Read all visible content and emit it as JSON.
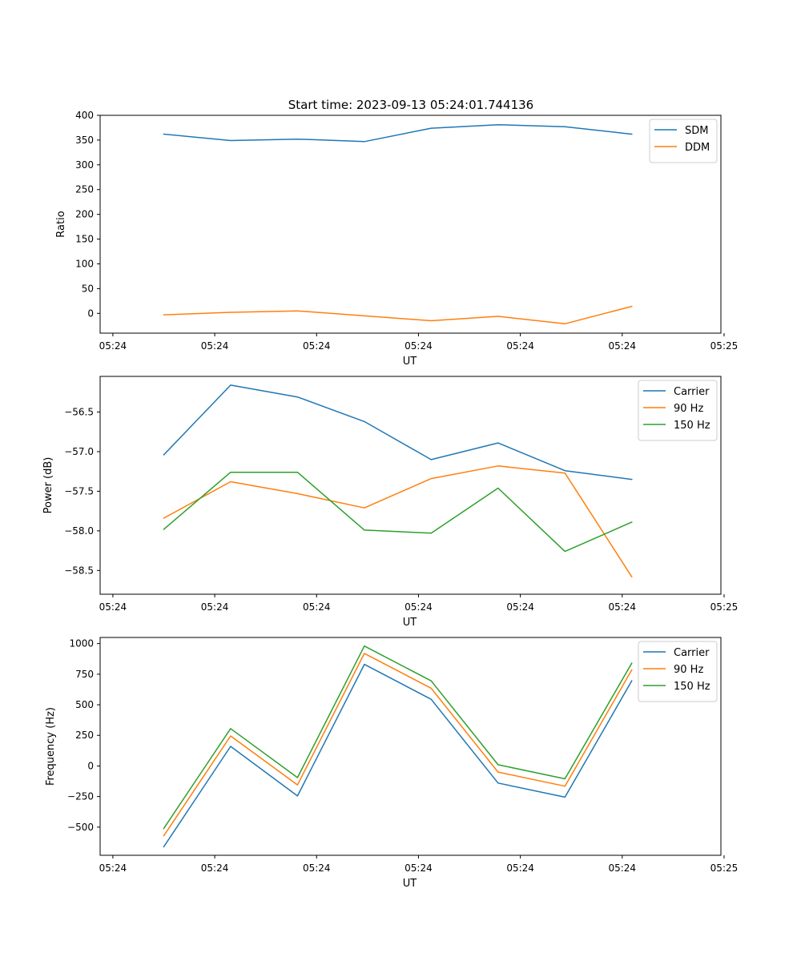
{
  "figure_title": "Start time: 2023-09-13 05:24:01.744136",
  "colors": {
    "blue": "#1f77b4",
    "orange": "#ff7f0e",
    "green": "#2ca02c"
  },
  "chart_data": [
    {
      "type": "line",
      "title": "Start time: 2023-09-13 05:24:01.744136",
      "xlabel": "UT",
      "ylabel": "Ratio",
      "xlim": [
        0,
        9.75
      ],
      "ylim": [
        -40,
        400
      ],
      "x_tick_values": [
        0.2,
        1.8,
        3.4,
        5.0,
        6.6,
        8.2,
        9.8
      ],
      "x_tick_labels": [
        "05:24",
        "05:24",
        "05:24",
        "05:24",
        "05:24",
        "05:24",
        "05:25"
      ],
      "y_tick_values": [
        0,
        50,
        100,
        150,
        200,
        250,
        300,
        350,
        400
      ],
      "y_tick_labels": [
        "0",
        "50",
        "100",
        "150",
        "200",
        "250",
        "300",
        "350",
        "400"
      ],
      "legend_position": "top-right",
      "x": [
        1,
        2.05,
        3.1,
        4.15,
        5.2,
        6.25,
        7.3,
        8.35
      ],
      "series": [
        {
          "name": "SDM",
          "color": "#1f77b4",
          "values": [
            362,
            349,
            352,
            347,
            374,
            381,
            377,
            362
          ]
        },
        {
          "name": "DDM",
          "color": "#ff7f0e",
          "values": [
            -3,
            2,
            5,
            -5,
            -15,
            -6,
            -21,
            14
          ]
        }
      ]
    },
    {
      "type": "line",
      "title": "",
      "xlabel": "UT",
      "ylabel": "Power (dB)",
      "xlim": [
        0,
        9.75
      ],
      "ylim": [
        -58.8,
        -56.05
      ],
      "x_tick_values": [
        0.2,
        1.8,
        3.4,
        5.0,
        6.6,
        8.2,
        9.8
      ],
      "x_tick_labels": [
        "05:24",
        "05:24",
        "05:24",
        "05:24",
        "05:24",
        "05:24",
        "05:25"
      ],
      "y_tick_values": [
        -56.5,
        -57.0,
        -57.5,
        -58.0,
        -58.5
      ],
      "y_tick_labels": [
        "−56.5",
        "−57.0",
        "−57.5",
        "−58.0",
        "−58.5"
      ],
      "legend_position": "top-right",
      "x": [
        1,
        2.05,
        3.1,
        4.15,
        5.2,
        6.25,
        7.3,
        8.35
      ],
      "series": [
        {
          "name": "Carrier",
          "color": "#1f77b4",
          "values": [
            -57.04,
            -56.16,
            -56.31,
            -56.62,
            -57.1,
            -56.89,
            -57.24,
            -57.35
          ]
        },
        {
          "name": "90 Hz",
          "color": "#ff7f0e",
          "values": [
            -57.84,
            -57.38,
            -57.53,
            -57.71,
            -57.34,
            -57.18,
            -57.27,
            -58.58
          ]
        },
        {
          "name": "150 Hz",
          "color": "#2ca02c",
          "values": [
            -57.98,
            -57.26,
            -57.26,
            -57.99,
            -58.03,
            -57.46,
            -58.26,
            -57.89
          ]
        }
      ]
    },
    {
      "type": "line",
      "title": "",
      "xlabel": "UT",
      "ylabel": "Frequency (Hz)",
      "xlim": [
        0,
        9.75
      ],
      "ylim": [
        -730,
        1050
      ],
      "x_tick_values": [
        0.2,
        1.8,
        3.4,
        5.0,
        6.6,
        8.2,
        9.8
      ],
      "x_tick_labels": [
        "05:24",
        "05:24",
        "05:24",
        "05:24",
        "05:24",
        "05:24",
        "05:25"
      ],
      "y_tick_values": [
        -500,
        -250,
        0,
        250,
        500,
        750,
        1000
      ],
      "y_tick_labels": [
        "−500",
        "−250",
        "0",
        "250",
        "500",
        "750",
        "1000"
      ],
      "legend_position": "top-right",
      "x": [
        1,
        2.05,
        3.1,
        4.15,
        5.2,
        6.25,
        7.3,
        8.35
      ],
      "series": [
        {
          "name": "Carrier",
          "color": "#1f77b4",
          "values": [
            -660,
            160,
            -245,
            830,
            545,
            -140,
            -255,
            695
          ]
        },
        {
          "name": "90 Hz",
          "color": "#ff7f0e",
          "values": [
            -570,
            245,
            -155,
            920,
            635,
            -50,
            -165,
            785
          ]
        },
        {
          "name": "150 Hz",
          "color": "#2ca02c",
          "values": [
            -510,
            305,
            -95,
            980,
            695,
            10,
            -105,
            840
          ]
        }
      ]
    }
  ]
}
